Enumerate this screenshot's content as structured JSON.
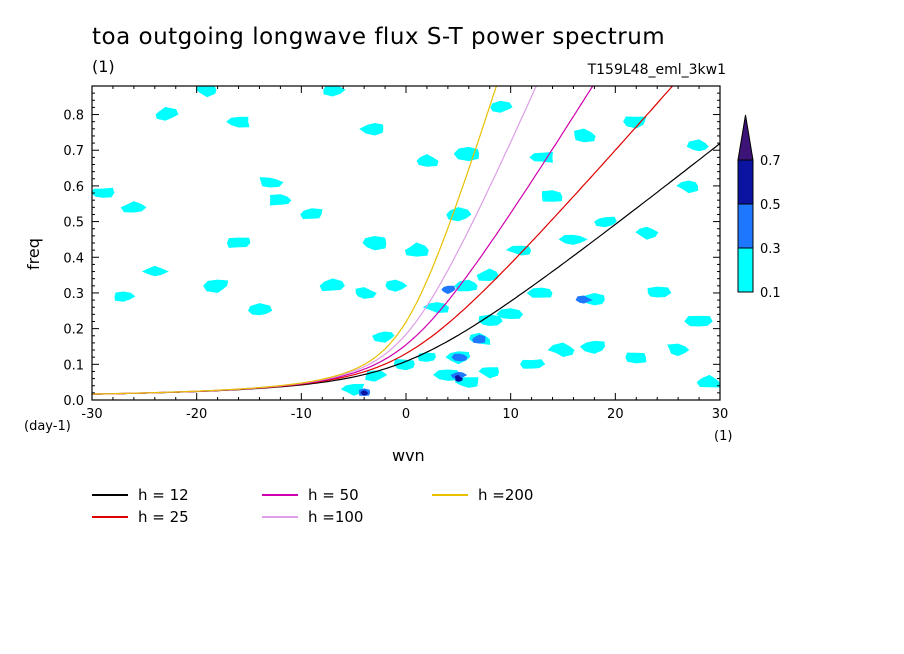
{
  "chart_data": {
    "type": "line",
    "title": "toa outgoing longwave flux S-T power spectrum",
    "subtitle": "(1)",
    "run_label": "T159L48_eml_3kw1",
    "xlabel": "wvn",
    "ylabel": "freq",
    "x_unit": "(1)",
    "y_unit": "(day-1)",
    "xlim": [
      -30,
      30
    ],
    "ylim": [
      0,
      0.88
    ],
    "x_ticks": [
      -30,
      -20,
      -10,
      0,
      10,
      20,
      30
    ],
    "x_tick_labels": [
      "-30",
      "-20",
      "-10",
      "0",
      "10",
      "20",
      "30"
    ],
    "y_ticks": [
      0,
      0.1,
      0.2,
      0.3,
      0.4,
      0.5,
      0.6,
      0.7,
      0.8
    ],
    "y_tick_labels": [
      "0.0",
      "0.1",
      "0.2",
      "0.3",
      "0.4",
      "0.5",
      "0.6",
      "0.7",
      "0.8"
    ],
    "series": [
      {
        "name": "h = 12",
        "h": 12,
        "color": "#000000"
      },
      {
        "name": "h = 25",
        "h": 25,
        "color": "#e00000"
      },
      {
        "name": "h = 50",
        "h": 50,
        "color": "#d000b0"
      },
      {
        "name": "h =100",
        "h": 100,
        "color": "#dc9ee6"
      },
      {
        "name": "h =200",
        "h": 200,
        "color": "#e8c000"
      }
    ],
    "colorbar": {
      "levels": [
        "0.1",
        "0.3",
        "0.5",
        "0.7"
      ],
      "colors": [
        "#00ffff",
        "#1e78ff",
        "#0a14a0",
        "#3c1478"
      ]
    },
    "contour_regions": [
      {
        "x": -29,
        "y": 0.58,
        "level": 0
      },
      {
        "x": -26,
        "y": 0.54,
        "level": 0
      },
      {
        "x": -23,
        "y": 0.8,
        "level": 0
      },
      {
        "x": -19,
        "y": 0.87,
        "level": 0
      },
      {
        "x": -16,
        "y": 0.78,
        "level": 0
      },
      {
        "x": -12,
        "y": 0.56,
        "level": 0
      },
      {
        "x": -7,
        "y": 0.87,
        "level": 0
      },
      {
        "x": -3,
        "y": 0.76,
        "level": 0
      },
      {
        "x": 2,
        "y": 0.67,
        "level": 0
      },
      {
        "x": 6,
        "y": 0.69,
        "level": 0
      },
      {
        "x": 9,
        "y": 0.82,
        "level": 0
      },
      {
        "x": 13,
        "y": 0.68,
        "level": 0
      },
      {
        "x": 17,
        "y": 0.74,
        "level": 0
      },
      {
        "x": 22,
        "y": 0.78,
        "level": 0
      },
      {
        "x": 28,
        "y": 0.71,
        "level": 0
      },
      {
        "x": -27,
        "y": 0.29,
        "level": 0
      },
      {
        "x": -24,
        "y": 0.36,
        "level": 0
      },
      {
        "x": -16,
        "y": 0.44,
        "level": 0
      },
      {
        "x": -13,
        "y": 0.61,
        "level": 0
      },
      {
        "x": -9,
        "y": 0.52,
        "level": 0
      },
      {
        "x": -7,
        "y": 0.32,
        "level": 0
      },
      {
        "x": -3,
        "y": 0.44,
        "level": 0
      },
      {
        "x": 1,
        "y": 0.42,
        "level": 0
      },
      {
        "x": 5,
        "y": 0.52,
        "level": 0
      },
      {
        "x": 8,
        "y": 0.35,
        "level": 0
      },
      {
        "x": 11,
        "y": 0.42,
        "level": 0
      },
      {
        "x": 14,
        "y": 0.57,
        "level": 0
      },
      {
        "x": 16,
        "y": 0.45,
        "level": 0
      },
      {
        "x": 19,
        "y": 0.5,
        "level": 0
      },
      {
        "x": 23,
        "y": 0.47,
        "level": 0
      },
      {
        "x": 27,
        "y": 0.6,
        "level": 0
      },
      {
        "x": 28,
        "y": 0.22,
        "level": 0
      },
      {
        "x": 24,
        "y": 0.3,
        "level": 0
      },
      {
        "x": 18,
        "y": 0.28,
        "level": 0
      },
      {
        "x": 13,
        "y": 0.3,
        "level": 0
      },
      {
        "x": 10,
        "y": 0.24,
        "level": 0
      },
      {
        "x": 8,
        "y": 0.22,
        "level": 0
      },
      {
        "x": 3,
        "y": 0.26,
        "level": 0
      },
      {
        "x": 6,
        "y": 0.32,
        "level": 0
      },
      {
        "x": -1,
        "y": 0.32,
        "level": 0
      },
      {
        "x": -4,
        "y": 0.3,
        "level": 0
      },
      {
        "x": -14,
        "y": 0.25,
        "level": 0
      },
      {
        "x": -18,
        "y": 0.32,
        "level": 0
      },
      {
        "x": -5,
        "y": 0.03,
        "level": 0
      },
      {
        "x": -3,
        "y": 0.07,
        "level": 0
      },
      {
        "x": 0,
        "y": 0.1,
        "level": 0
      },
      {
        "x": 2,
        "y": 0.12,
        "level": 0
      },
      {
        "x": 4,
        "y": 0.07,
        "level": 0
      },
      {
        "x": 5,
        "y": 0.12,
        "level": 0
      },
      {
        "x": 6,
        "y": 0.05,
        "level": 0
      },
      {
        "x": 8,
        "y": 0.08,
        "level": 0
      },
      {
        "x": 12,
        "y": 0.1,
        "level": 0
      },
      {
        "x": 15,
        "y": 0.14,
        "level": 0
      },
      {
        "x": 18,
        "y": 0.15,
        "level": 0
      },
      {
        "x": 22,
        "y": 0.12,
        "level": 0
      },
      {
        "x": 26,
        "y": 0.14,
        "level": 0
      },
      {
        "x": 29,
        "y": 0.05,
        "level": 0
      },
      {
        "x": -2,
        "y": 0.18,
        "level": 0
      },
      {
        "x": 7,
        "y": 0.17,
        "level": 0
      },
      {
        "x": -4,
        "y": 0.02,
        "level": 1
      },
      {
        "x": 5,
        "y": 0.07,
        "level": 1
      },
      {
        "x": 5.2,
        "y": 0.12,
        "level": 1
      },
      {
        "x": 4,
        "y": 0.31,
        "level": 1
      },
      {
        "x": 17,
        "y": 0.28,
        "level": 1
      },
      {
        "x": 7,
        "y": 0.17,
        "level": 1
      },
      {
        "x": 5,
        "y": 0.06,
        "level": 2
      },
      {
        "x": -4,
        "y": 0.02,
        "level": 2
      }
    ]
  }
}
